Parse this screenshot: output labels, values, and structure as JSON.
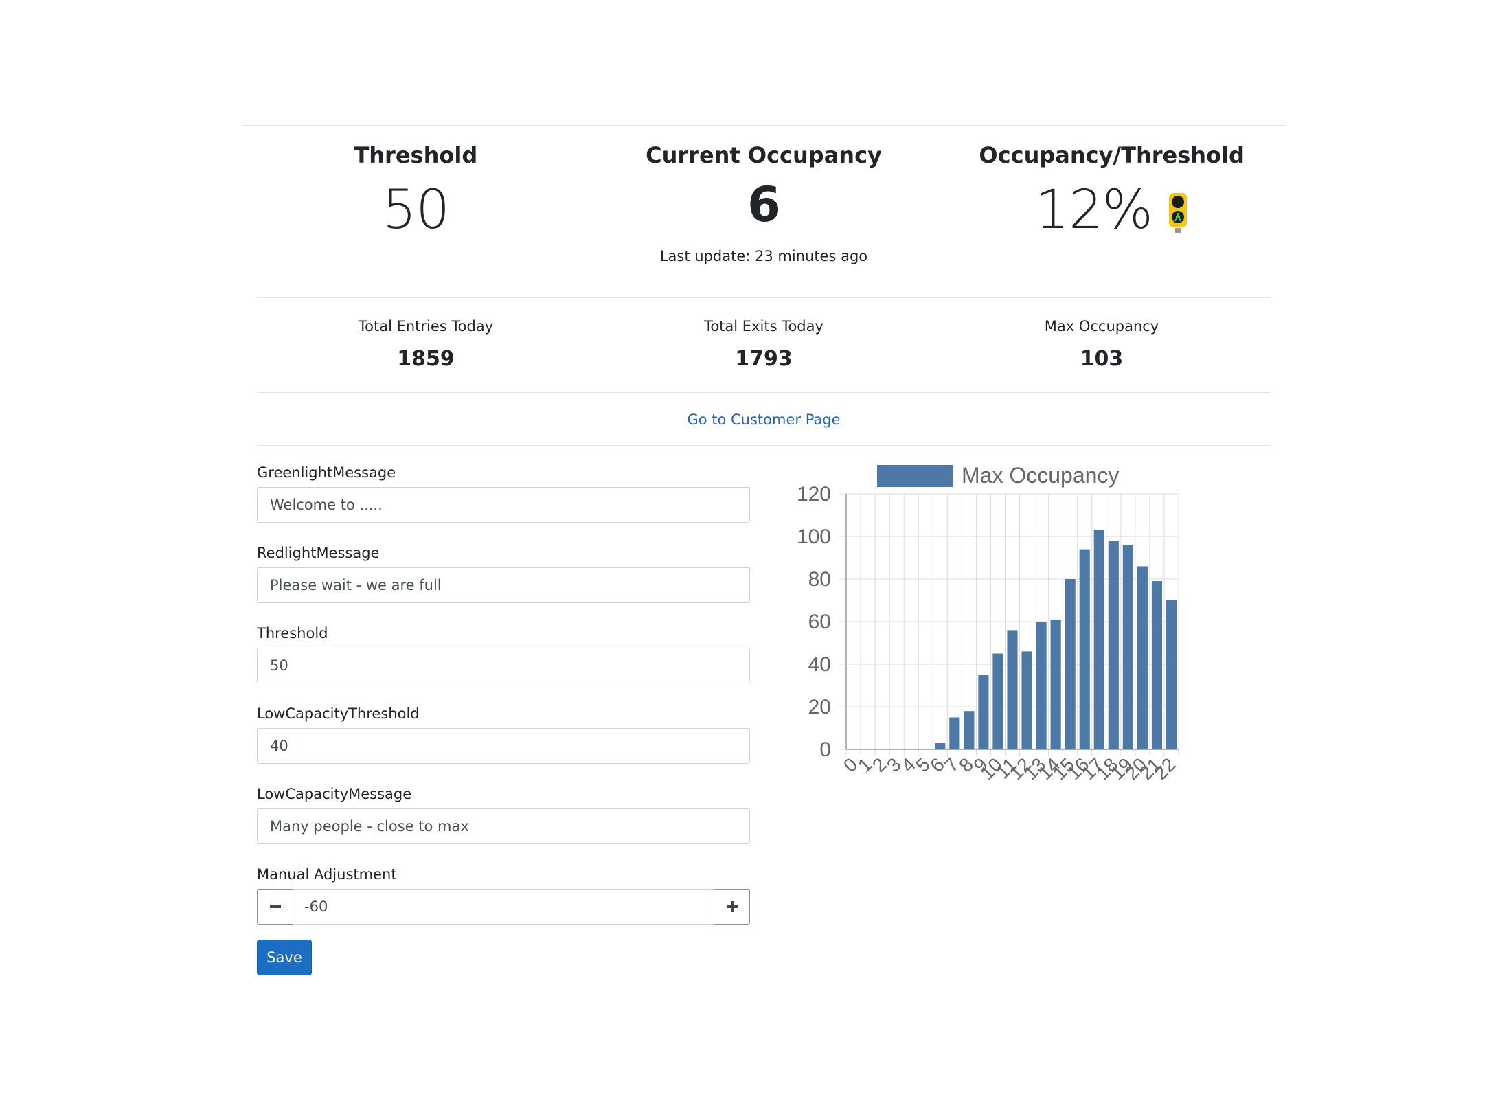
{
  "stats": {
    "threshold": {
      "title": "Threshold",
      "value": "50"
    },
    "current": {
      "title": "Current Occupancy",
      "value": "6",
      "last_update": "Last update: 23 minutes ago"
    },
    "ratio": {
      "title": "Occupancy/Threshold",
      "value": "12%",
      "light_icon": "traffic-light-icon"
    }
  },
  "secondary": {
    "entries": {
      "label": "Total Entries Today",
      "value": "1859"
    },
    "exits": {
      "label": "Total Exits Today",
      "value": "1793"
    },
    "max": {
      "label": "Max Occupancy",
      "value": "103"
    }
  },
  "customer_link": "Go to Customer Page",
  "form": {
    "greenlight": {
      "label": "GreenlightMessage",
      "value": "Welcome to ....."
    },
    "redlight": {
      "label": "RedlightMessage",
      "value": "Please wait - we are full"
    },
    "threshold": {
      "label": "Threshold",
      "value": "50"
    },
    "low_threshold": {
      "label": "LowCapacityThreshold",
      "value": "40"
    },
    "low_message": {
      "label": "LowCapacityMessage",
      "value": "Many people - close to max"
    },
    "manual": {
      "label": "Manual Adjustment",
      "value": "-60"
    },
    "save_label": "Save"
  },
  "colors": {
    "accent": "#1b6ec2",
    "bar": "#4e79a7",
    "traffic_body": "#f0c419"
  },
  "chart_data": {
    "type": "bar",
    "legend": "Max Occupancy",
    "legend_position": "top",
    "grid": true,
    "ylim": [
      0,
      120
    ],
    "yticks": [
      "0",
      "20",
      "40",
      "60",
      "80",
      "100",
      "120"
    ],
    "categories": [
      "0",
      "1",
      "2",
      "3",
      "4",
      "5",
      "6",
      "7",
      "8",
      "9",
      "10",
      "11",
      "12",
      "13",
      "14",
      "15",
      "16",
      "17",
      "18",
      "19",
      "20",
      "21",
      "22"
    ],
    "series": [
      {
        "name": "Max Occupancy",
        "values": [
          0,
          0,
          0,
          0,
          0,
          0,
          3,
          15,
          18,
          35,
          45,
          56,
          46,
          60,
          61,
          80,
          94,
          103,
          98,
          96,
          86,
          79,
          70
        ]
      }
    ]
  }
}
